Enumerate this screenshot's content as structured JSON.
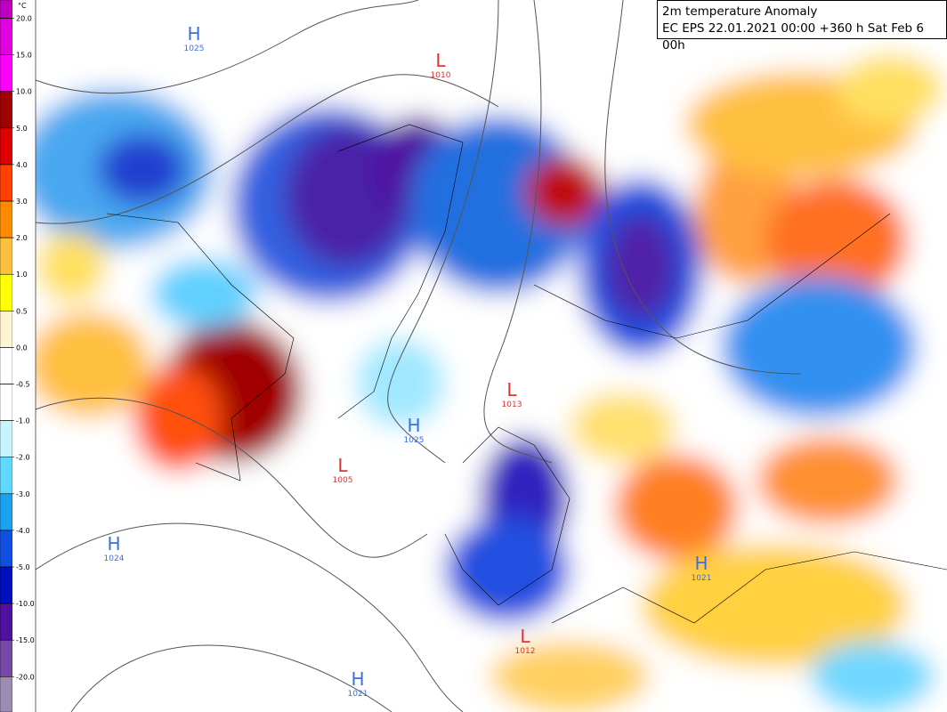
{
  "title": "2m temperature Anomaly",
  "subtitle": "EC EPS 22.01.2021 00:00 +360 h Sat Feb 6 00h",
  "legend": {
    "unit": "°C",
    "ticks": [
      {
        "value": 20,
        "label": "20.0"
      },
      {
        "value": 15,
        "label": "15.0"
      },
      {
        "value": 10,
        "label": "10.0"
      },
      {
        "value": 5,
        "label": "5.0"
      },
      {
        "value": 4,
        "label": "4.0"
      },
      {
        "value": 3,
        "label": "3.0"
      },
      {
        "value": 2,
        "label": "2.0"
      },
      {
        "value": 1,
        "label": "1.0"
      },
      {
        "value": 0.5,
        "label": "0.5"
      },
      {
        "value": 0,
        "label": "0.0"
      },
      {
        "value": -0.5,
        "label": "-0.5"
      },
      {
        "value": -1,
        "label": "-1.0"
      },
      {
        "value": -2,
        "label": "-2.0"
      },
      {
        "value": -3,
        "label": "-3.0"
      },
      {
        "value": -4,
        "label": "-4.0"
      },
      {
        "value": -5,
        "label": "-5.0"
      },
      {
        "value": -10,
        "label": "-10.0"
      },
      {
        "value": -15,
        "label": "-15.0"
      },
      {
        "value": -20,
        "label": "-20.0"
      }
    ],
    "colors": [
      "#c000c0",
      "#e000e0",
      "#ff00ff",
      "#a00000",
      "#e00000",
      "#ff4000",
      "#ff8c00",
      "#ffc040",
      "#ffff00",
      "#fff4d0",
      "#ffffff",
      "#ffffff",
      "#c8f4ff",
      "#60d8ff",
      "#1ca0f0",
      "#1050e0",
      "#0010c0",
      "#5010a0",
      "#7848a8",
      "#9c8cb4"
    ]
  },
  "pressure_centers": [
    {
      "type": "H",
      "value": "1025"
    },
    {
      "type": "L",
      "value": "1010"
    },
    {
      "type": "L",
      "value": "1013"
    },
    {
      "type": "H",
      "value": "1025"
    },
    {
      "type": "L",
      "value": "1005"
    },
    {
      "type": "H",
      "value": "1024"
    },
    {
      "type": "H",
      "value": "1021"
    },
    {
      "type": "H",
      "value": "1021"
    },
    {
      "type": "L",
      "value": "1012"
    }
  ]
}
